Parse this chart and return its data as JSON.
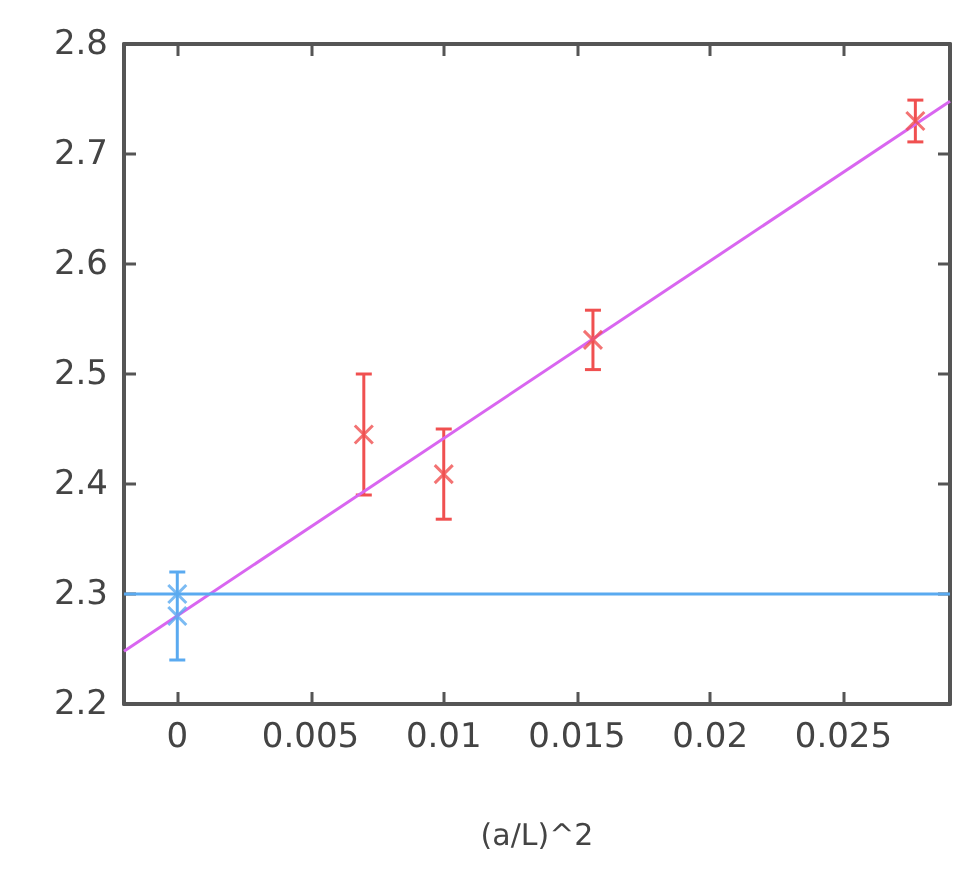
{
  "chart_data": {
    "type": "scatter",
    "xlabel": "(a/L)^2",
    "xlim": [
      -0.002,
      0.029
    ],
    "xticks": [
      0,
      0.005,
      0.01,
      0.015,
      0.02,
      0.025
    ],
    "ylim": [
      2.2,
      2.8
    ],
    "yticks": [
      2.2,
      2.3,
      2.4,
      2.5,
      2.6,
      2.7,
      2.8
    ],
    "grid": false,
    "marker": "cross",
    "series": [
      {
        "type": "line",
        "color": "#d966f0",
        "x": [
          -0.002,
          0.029
        ],
        "values": [
          2.248,
          2.748
        ],
        "marker": "none"
      },
      {
        "color": "#f05050",
        "x": [
          0.007,
          0.01,
          0.0156,
          0.0277
        ],
        "values": [
          2.445,
          2.409,
          2.531,
          2.73
        ],
        "errors": [
          0.055,
          0.041,
          0.027,
          0.019
        ]
      },
      {
        "color": "#5aaaf0",
        "x": [
          0,
          0
        ],
        "values": [
          2.28,
          2.3
        ],
        "errors": [
          0.04,
          null
        ]
      }
    ],
    "ref_lines": [
      {
        "axis": "y",
        "value": 2.3,
        "label": null,
        "color": "#5aaaf0"
      }
    ]
  }
}
